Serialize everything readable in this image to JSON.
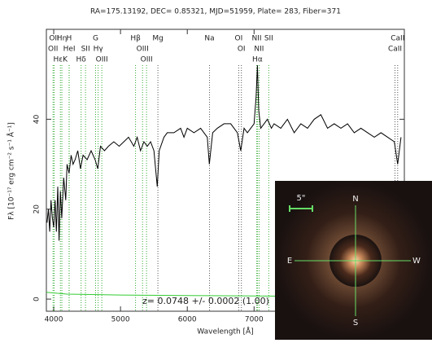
{
  "chart_data": {
    "type": "line",
    "title": "RA=175.13192, DEC= 0.85321, MJD=51959, Plate= 283, Fiber=371",
    "xlabel": "Wavelength [Å]",
    "ylabel": "Fλ [10⁻¹⁷ erg cm⁻² s⁻¹ Å⁻¹]",
    "xlim": [
      3890,
      9250
    ],
    "ylim": [
      -2.7,
      60
    ],
    "xticks": [
      4000,
      5000,
      6000,
      7000
    ],
    "yticks": [
      0,
      20,
      40
    ],
    "series": [
      {
        "color": "#000000",
        "x": [
          3900,
          3920,
          3940,
          3960,
          3980,
          4000,
          4020,
          4040,
          4060,
          4080,
          4100,
          4120,
          4150,
          4180,
          4200,
          4230,
          4260,
          4290,
          4320,
          4360,
          4400,
          4440,
          4500,
          4560,
          4620,
          4660,
          4700,
          4760,
          4820,
          4900,
          4980,
          5050,
          5120,
          5200,
          5250,
          5300,
          5350,
          5400,
          5450,
          5500,
          5550,
          5580,
          5650,
          5700,
          5800,
          5900,
          5950,
          6000,
          6100,
          6200,
          6300,
          6330,
          6380,
          6450,
          6550,
          6650,
          6750,
          6800,
          6850,
          6900,
          6950,
          7000,
          7030,
          7050,
          7070,
          7100,
          7150,
          7200,
          7260,
          7300,
          7400,
          7500,
          7600,
          7700,
          7800,
          7900,
          8000,
          8100,
          8200,
          8300,
          8400,
          8500,
          8600,
          8700,
          8800,
          8900,
          9000,
          9100,
          9150,
          9200
        ],
        "values": [
          17,
          20,
          15,
          22,
          18,
          16,
          22,
          15,
          25,
          13,
          24,
          18,
          27,
          22,
          30,
          28,
          32,
          30,
          31,
          33,
          29,
          32,
          31,
          33,
          31,
          29,
          34,
          33,
          34,
          35,
          34,
          35,
          36,
          34,
          36,
          33,
          35,
          34,
          35,
          33,
          25,
          33,
          36,
          37,
          37,
          38,
          36,
          38,
          37,
          38,
          36,
          30,
          37,
          38,
          39,
          39,
          37,
          33,
          38,
          37,
          38,
          39,
          45,
          52,
          42,
          38,
          39,
          40,
          38,
          39,
          38,
          40,
          37,
          39,
          38,
          40,
          41,
          38,
          39,
          38,
          39,
          37,
          38,
          37,
          36,
          37,
          36,
          35,
          30,
          36
        ]
      },
      {
        "color": "#33cc33",
        "x": [
          3890,
          4200,
          5000,
          6000,
          7000,
          8000,
          9250
        ],
        "values": [
          1.5,
          1.1,
          0.9,
          0.8,
          0.7,
          0.6,
          0.6
        ]
      }
    ],
    "spectral_lines": [
      {
        "label": "OII",
        "x": 4006,
        "row": 1,
        "color": "#33aa33"
      },
      {
        "label": "Hη",
        "x": 4122,
        "row": 1,
        "color": "#33aa33"
      },
      {
        "label": "H",
        "x": 4230,
        "row": 1,
        "color": "#33aa33"
      },
      {
        "label": "G",
        "x": 4627,
        "row": 1,
        "color": "#33aa33"
      },
      {
        "label": "Hβ",
        "x": 5225,
        "row": 1,
        "color": "#33aa33"
      },
      {
        "label": "Mg",
        "x": 5560,
        "row": 1,
        "color": "#555555"
      },
      {
        "label": "Na",
        "x": 6333,
        "row": 1,
        "color": "#555555"
      },
      {
        "label": "OI",
        "x": 6770,
        "row": 1,
        "color": "#555555"
      },
      {
        "label": "NII",
        "x": 7040,
        "row": 1,
        "color": "#33aa33"
      },
      {
        "label": "SII",
        "x": 7220,
        "row": 1,
        "color": "#33aa33"
      },
      {
        "label": "CaII",
        "x": 9150,
        "row": 1,
        "color": "#555555"
      },
      {
        "label": "OII",
        "x": 3990,
        "row": 2,
        "color": "#33aa33"
      },
      {
        "label": "HeI",
        "x": 4232,
        "row": 2,
        "color": "#33aa33"
      },
      {
        "label": "SII",
        "x": 4476,
        "row": 2,
        "color": "#33aa33"
      },
      {
        "label": "Hγ",
        "x": 4665,
        "row": 2,
        "color": "#33aa33"
      },
      {
        "label": "OIII",
        "x": 5330,
        "row": 2,
        "color": "#33aa33"
      },
      {
        "label": "OI",
        "x": 6810,
        "row": 2,
        "color": "#555555"
      },
      {
        "label": "NII",
        "x": 7075,
        "row": 2,
        "color": "#33aa33"
      },
      {
        "label": "CaII",
        "x": 9110,
        "row": 2,
        "color": "#555555"
      },
      {
        "label": "HεK",
        "x": 4100,
        "row": 3,
        "color": "#33aa33"
      },
      {
        "label": "Hδ",
        "x": 4410,
        "row": 3,
        "color": "#33aa33"
      },
      {
        "label": "OIII",
        "x": 4720,
        "row": 3,
        "color": "#33aa33"
      },
      {
        "label": "OIII",
        "x": 5390,
        "row": 3,
        "color": "#33aa33"
      },
      {
        "label": "Hα",
        "x": 7050,
        "row": 3,
        "color": "#33aa33"
      }
    ],
    "annotation": "z= 0.0748 +/- 0.0002 (1.00)"
  },
  "inset": {
    "north": "N",
    "south": "S",
    "east": "E",
    "west": "W",
    "scale": "5\""
  }
}
